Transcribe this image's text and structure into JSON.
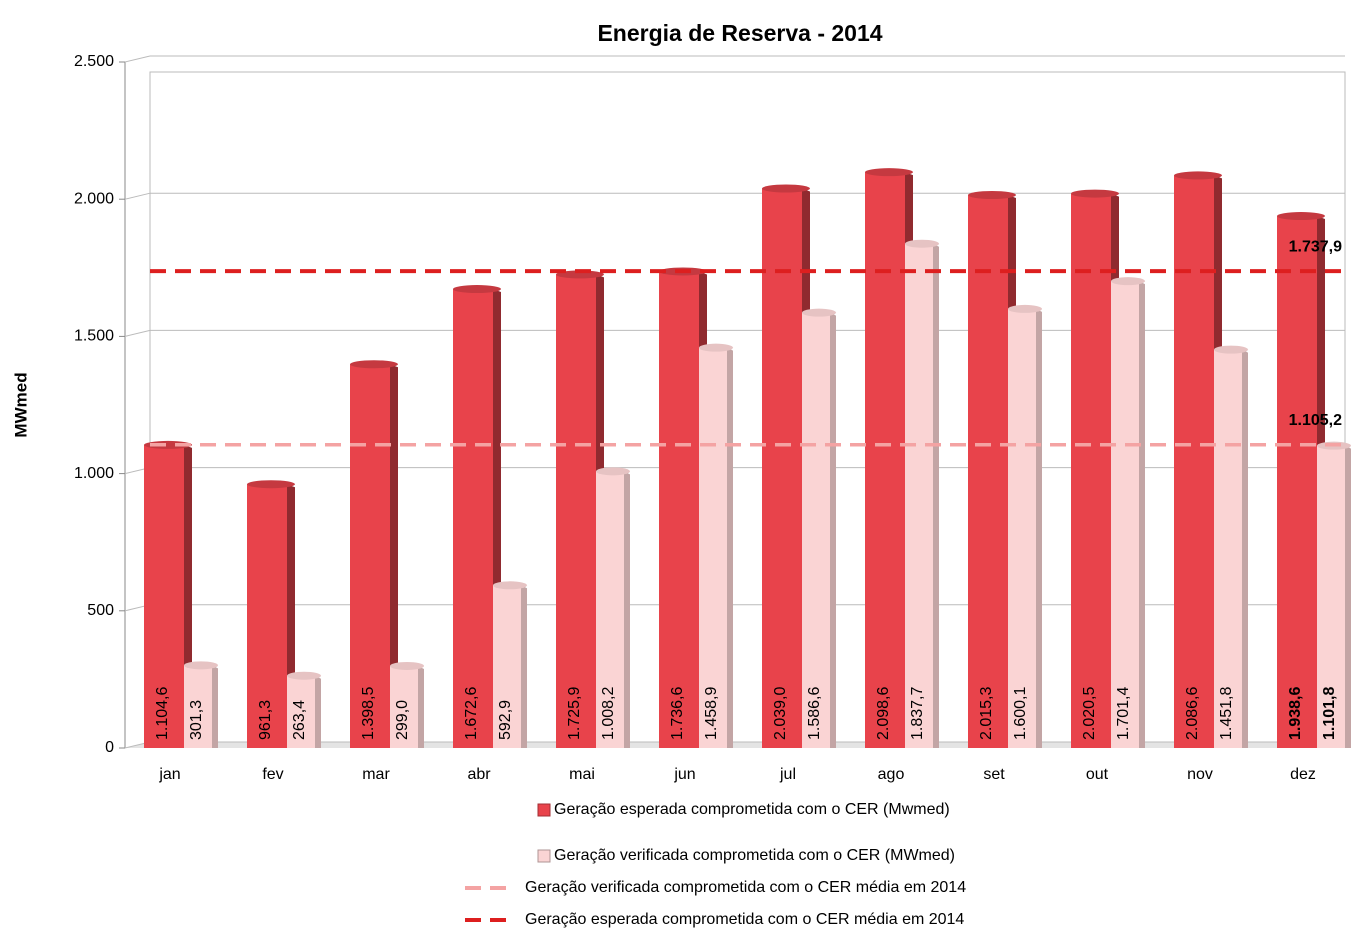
{
  "chart_data": {
    "type": "bar",
    "title": "Energia de Reserva - 2014",
    "y_label": "MWmed",
    "categories": [
      "jan",
      "fev",
      "mar",
      "abr",
      "mai",
      "jun",
      "jul",
      "ago",
      "set",
      "out",
      "nov",
      "dez"
    ],
    "series": [
      {
        "name": "Geração esperada comprometida com o CER (Mwmed)",
        "color": "#e8434b",
        "values": [
          1104.6,
          961.3,
          1398.5,
          1672.6,
          1725.9,
          1736.6,
          2039.0,
          2098.6,
          2015.3,
          2020.5,
          2086.6,
          1938.6
        ],
        "value_labels": [
          "1.104,6",
          "961,3",
          "1.398,5",
          "1.672,6",
          "1.725,9",
          "1.736,6",
          "2.039,0",
          "2.098,6",
          "2.015,3",
          "2.020,5",
          "2.086,6",
          "1.938,6"
        ]
      },
      {
        "name": "Geração verificada comprometida com o CER (MWmed)",
        "color": "#fad4d4",
        "values": [
          301.3,
          263.4,
          299.0,
          592.9,
          1008.2,
          1458.9,
          1586.6,
          1837.7,
          1600.1,
          1701.4,
          1451.8,
          1101.8
        ],
        "value_labels": [
          "301,3",
          "263,4",
          "299,0",
          "592,9",
          "1.008,2",
          "1.458,9",
          "1.586,6",
          "1.837,7",
          "1.600,1",
          "1.701,4",
          "1.451,8",
          "1.101,8"
        ]
      }
    ],
    "reference_lines": [
      {
        "name": "Geração verificada comprometida com o CER média em 2014",
        "color": "#f4a3a3",
        "value": 1105.2,
        "label": "1.105,2"
      },
      {
        "name": "Geração esperada comprometida com o CER média em 2014",
        "color": "#dd1f1f",
        "value": 1737.9,
        "label": "1.737,9"
      }
    ],
    "ylim": [
      0,
      2500
    ],
    "yticks": [
      0,
      500,
      {
        "value": 1000,
        "label": "1.000"
      },
      {
        "value": 1500,
        "label": "1.500"
      },
      {
        "value": 2000,
        "label": "2.000"
      },
      {
        "value": 2500,
        "label": "2.500"
      }
    ],
    "grid": true
  }
}
